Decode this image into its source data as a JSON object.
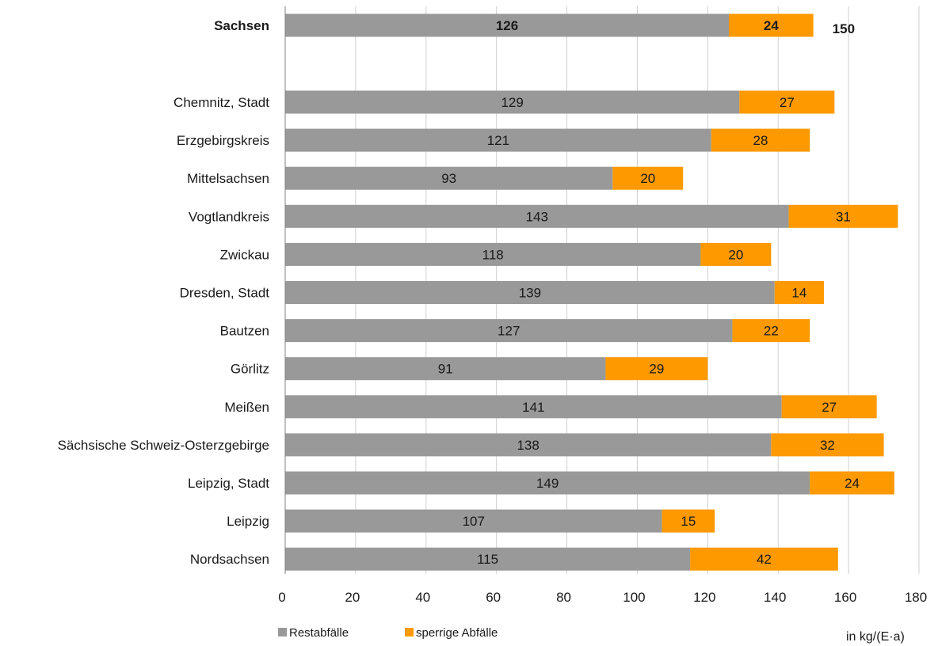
{
  "chart_data": {
    "type": "bar",
    "orientation": "horizontal",
    "stacked": true,
    "categories": [
      "Sachsen",
      "Chemnitz, Stadt",
      "Erzgebirgskreis",
      "Mittelsachsen",
      "Vogtlandkreis",
      "Zwickau",
      "Dresden, Stadt",
      "Bautzen",
      "Görlitz",
      "Meißen",
      "Sächsische Schweiz-Osterzgebirge",
      "Leipzig, Stadt",
      "Leipzig",
      "Nordsachsen"
    ],
    "highlight_category": "Sachsen",
    "series": [
      {
        "name": "Restabfälle",
        "color": "#999999",
        "values": [
          126,
          129,
          121,
          93,
          143,
          118,
          139,
          127,
          91,
          141,
          138,
          149,
          107,
          115
        ]
      },
      {
        "name": "sperrige Abfälle",
        "color": "#FF9900",
        "values": [
          24,
          27,
          28,
          20,
          31,
          20,
          14,
          22,
          29,
          27,
          32,
          24,
          15,
          42
        ]
      }
    ],
    "totals_shown": {
      "Sachsen": "150"
    },
    "xlim": [
      0,
      180
    ],
    "xticks": [
      0,
      20,
      40,
      60,
      80,
      100,
      120,
      140,
      160,
      180
    ],
    "grid": "vertical",
    "xlabel": "in kg/(E·a)",
    "legend_position": "bottom-left"
  }
}
